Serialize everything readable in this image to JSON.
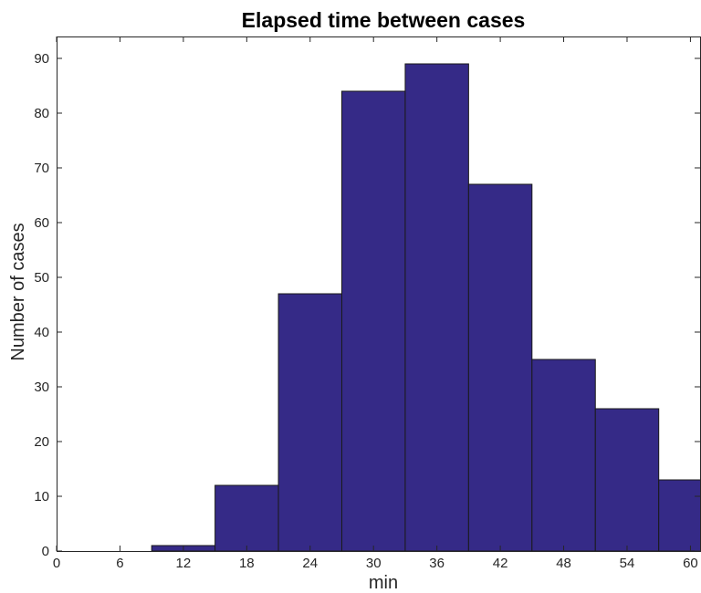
{
  "chart_data": {
    "type": "bar",
    "title": "Elapsed time between cases",
    "xlabel": "min",
    "ylabel": "Number of cases",
    "xlim": [
      0,
      61
    ],
    "ylim": [
      0,
      94
    ],
    "xticks": [
      0,
      6,
      12,
      18,
      24,
      30,
      36,
      42,
      48,
      54,
      60
    ],
    "yticks": [
      0,
      10,
      20,
      30,
      40,
      50,
      60,
      70,
      80,
      90
    ],
    "bins": [
      {
        "x0": 9,
        "x1": 15,
        "value": 1
      },
      {
        "x0": 15,
        "x1": 21,
        "value": 12
      },
      {
        "x0": 21,
        "x1": 27,
        "value": 47
      },
      {
        "x0": 27,
        "x1": 33,
        "value": 84
      },
      {
        "x0": 33,
        "x1": 39,
        "value": 89
      },
      {
        "x0": 39,
        "x1": 45,
        "value": 67
      },
      {
        "x0": 45,
        "x1": 51,
        "value": 35
      },
      {
        "x0": 51,
        "x1": 57,
        "value": 26
      },
      {
        "x0": 57,
        "x1": 61,
        "value": 13
      }
    ],
    "bar_color": "#352a87",
    "edge_color": "#1a1a1a",
    "grid": false,
    "box": true
  }
}
